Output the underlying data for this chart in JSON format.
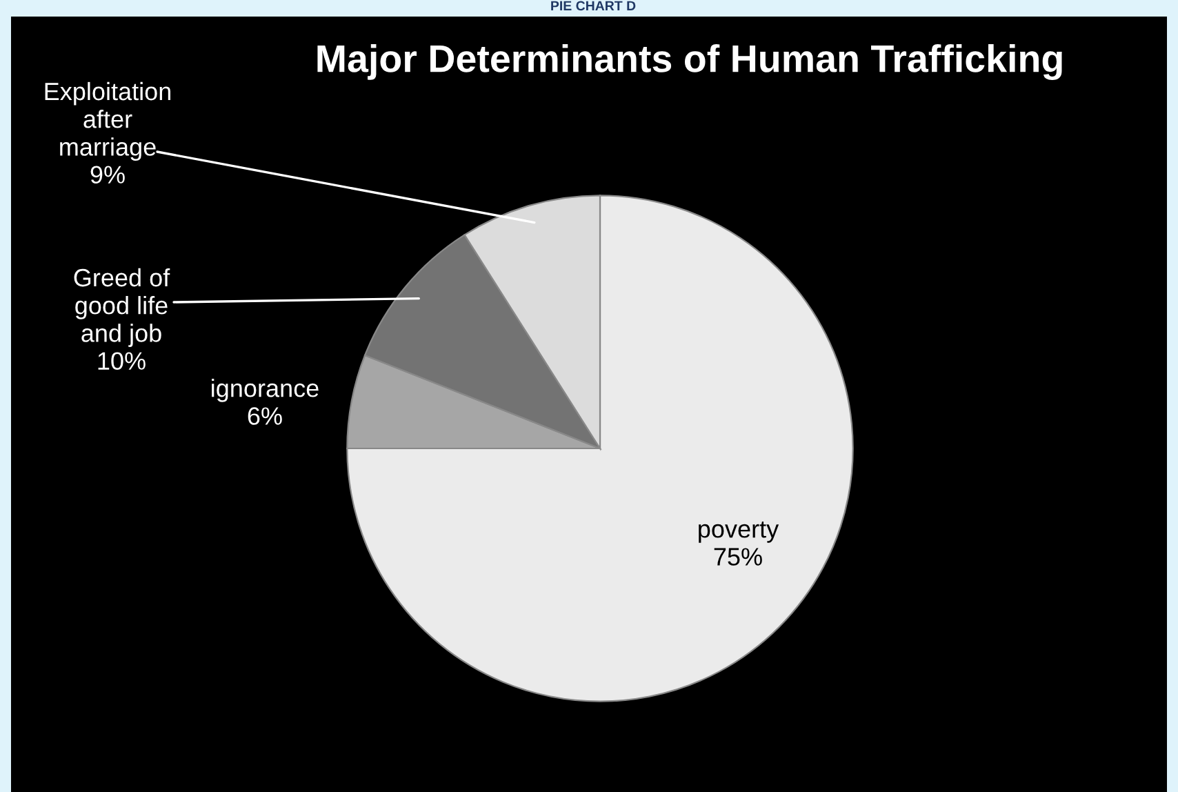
{
  "chart_data": {
    "type": "pie",
    "title": "Major Determinants of Human Trafficking",
    "categories": [
      "poverty",
      "ignorance",
      "Greed of good life and job",
      "Exploitation after marriage"
    ],
    "values": [
      75,
      6,
      10,
      9
    ],
    "value_labels": [
      "75%",
      "6%",
      "10%",
      "9%"
    ],
    "colors": [
      "#ebebeb",
      "#a6a6a6",
      "#737373",
      "#dcdcdc"
    ],
    "annotations": [
      "PIE CHART D"
    ]
  }
}
